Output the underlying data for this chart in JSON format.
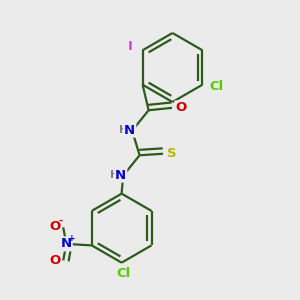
{
  "bg_color": "#ebebeb",
  "bond_color": "#2d5a1b",
  "bond_width": 1.6,
  "atom_colors": {
    "C": "#2d5a1b",
    "H": "#808080",
    "N": "#0000cc",
    "O": "#cc0000",
    "S": "#b8b800",
    "Cl": "#55cc00",
    "I": "#cc44cc"
  },
  "font_size": 9.5
}
